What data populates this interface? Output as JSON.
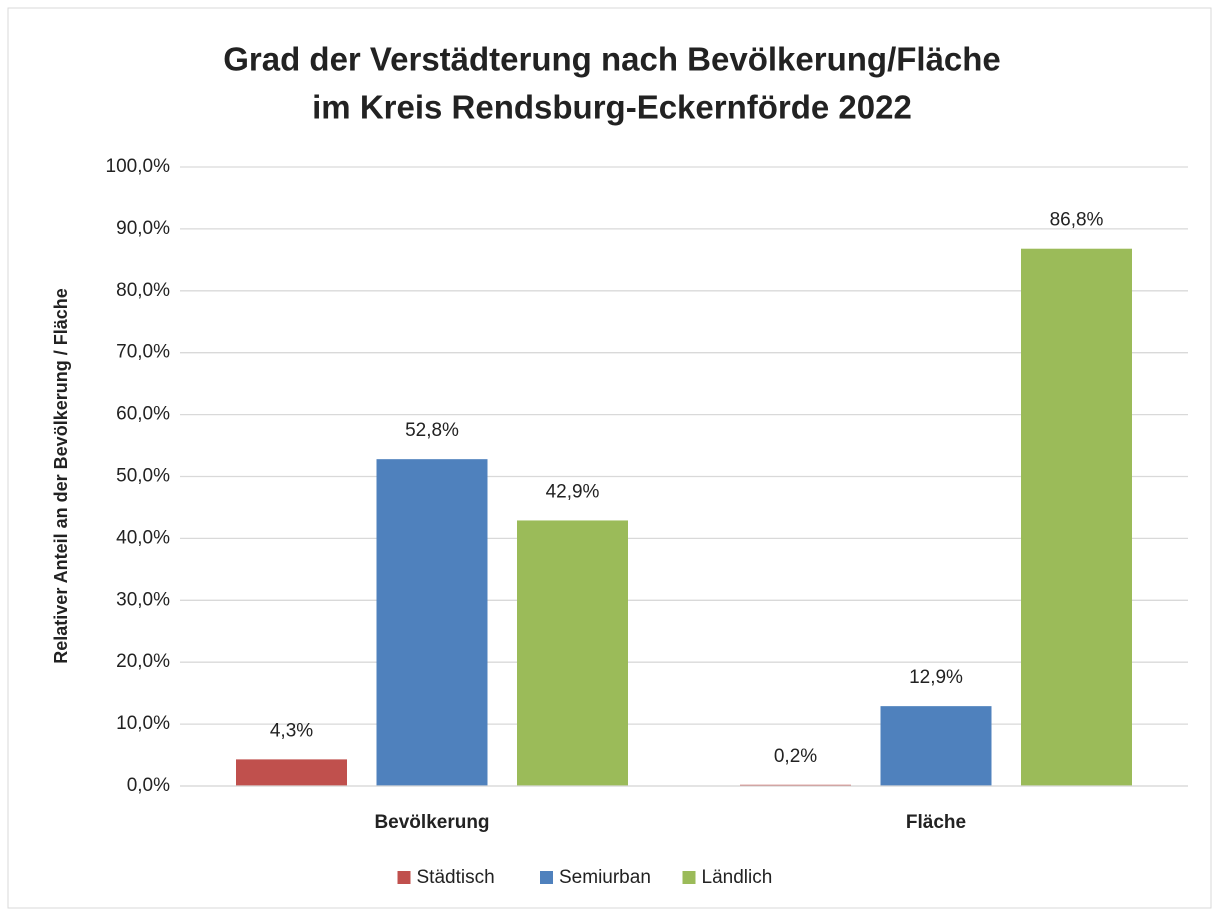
{
  "chart_data": {
    "type": "bar",
    "title": [
      "Grad der Verstädterung nach Bevölkerung/Fläche",
      "im Kreis Rendsburg-Eckernförde 2022"
    ],
    "y_label": "Relativer Anteil an der Bevölkerung / Fläche",
    "categories": [
      "Bevölkerung",
      "Fläche"
    ],
    "series": [
      {
        "name": "Städtisch",
        "color": "#c0504d",
        "values": [
          4.3,
          0.2
        ],
        "value_labels": [
          "4,3%",
          "0,2%"
        ]
      },
      {
        "name": "Semiurban",
        "color": "#4f81bd",
        "values": [
          52.8,
          12.9
        ],
        "value_labels": [
          "52,8%",
          "12,9%"
        ]
      },
      {
        "name": "Ländlich",
        "color": "#9bbb59",
        "values": [
          42.9,
          86.8
        ],
        "value_labels": [
          "42,9%",
          "86,8%"
        ]
      }
    ],
    "ylim": [
      0,
      100
    ],
    "yticks": [
      {
        "value": 0,
        "label": "0,0%"
      },
      {
        "value": 10,
        "label": "10,0%"
      },
      {
        "value": 20,
        "label": "20,0%"
      },
      {
        "value": 30,
        "label": "30,0%"
      },
      {
        "value": 40,
        "label": "40,0%"
      },
      {
        "value": 50,
        "label": "50,0%"
      },
      {
        "value": 60,
        "label": "60,0%"
      },
      {
        "value": 70,
        "label": "70,0%"
      },
      {
        "value": 80,
        "label": "80,0%"
      },
      {
        "value": 90,
        "label": "90,0%"
      },
      {
        "value": 100,
        "label": "100,0%"
      }
    ],
    "grid": true,
    "legend": "bottom"
  }
}
